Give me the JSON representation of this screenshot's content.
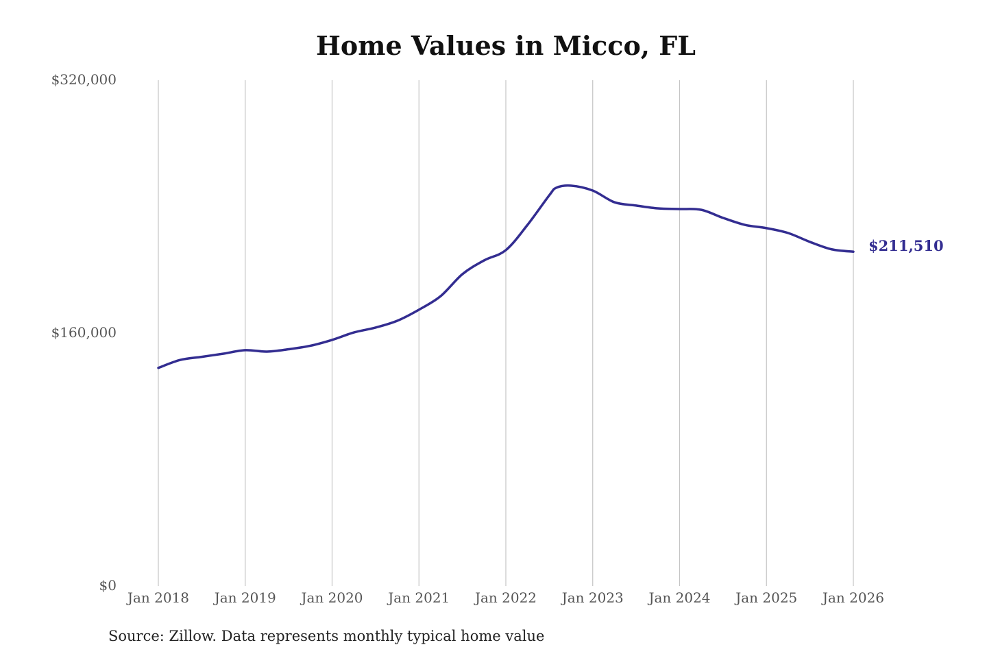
{
  "chart_data": {
    "type": "line",
    "title": "Home Values in Micco, FL",
    "source": "Source: Zillow. Data represents monthly typical home value",
    "xlabel": "",
    "ylabel": "",
    "ylim": [
      0,
      320000
    ],
    "xlim": [
      "Jan 2018",
      "Jan 2026"
    ],
    "y_ticks": [
      0,
      160000,
      320000
    ],
    "y_tick_labels": [
      "$0",
      "$160,000",
      "$320,000"
    ],
    "x_tick_labels": [
      "Jan 2018",
      "Jan 2019",
      "Jan 2020",
      "Jan 2021",
      "Jan 2022",
      "Jan 2023",
      "Jan 2024",
      "Jan 2025",
      "Jan 2026"
    ],
    "grid": "vertical lines at x ticks",
    "line_color": "#332d91",
    "end_label": "$211,510",
    "series": [
      {
        "x": [
          "2018-01",
          "2018-04",
          "2018-07",
          "2018-10",
          "2019-01",
          "2019-04",
          "2019-07",
          "2019-10",
          "2020-01",
          "2020-04",
          "2020-07",
          "2020-10",
          "2021-01",
          "2021-04",
          "2021-07",
          "2021-10",
          "2022-01",
          "2022-04",
          "2022-07",
          "2022-08",
          "2022-10",
          "2023-01",
          "2023-04",
          "2023-07",
          "2023-10",
          "2024-01",
          "2024-04",
          "2024-07",
          "2024-10",
          "2025-01",
          "2025-04",
          "2025-07",
          "2025-10",
          "2026-01"
        ],
        "values": [
          138000,
          143000,
          145000,
          147000,
          149200,
          148300,
          149800,
          152000,
          155700,
          160400,
          163500,
          167800,
          174800,
          183400,
          197300,
          206000,
          212500,
          228500,
          247200,
          252000,
          253300,
          250200,
          242800,
          240700,
          238900,
          238500,
          238000,
          232900,
          228500,
          226400,
          223300,
          217700,
          213000,
          211510
        ]
      }
    ]
  }
}
